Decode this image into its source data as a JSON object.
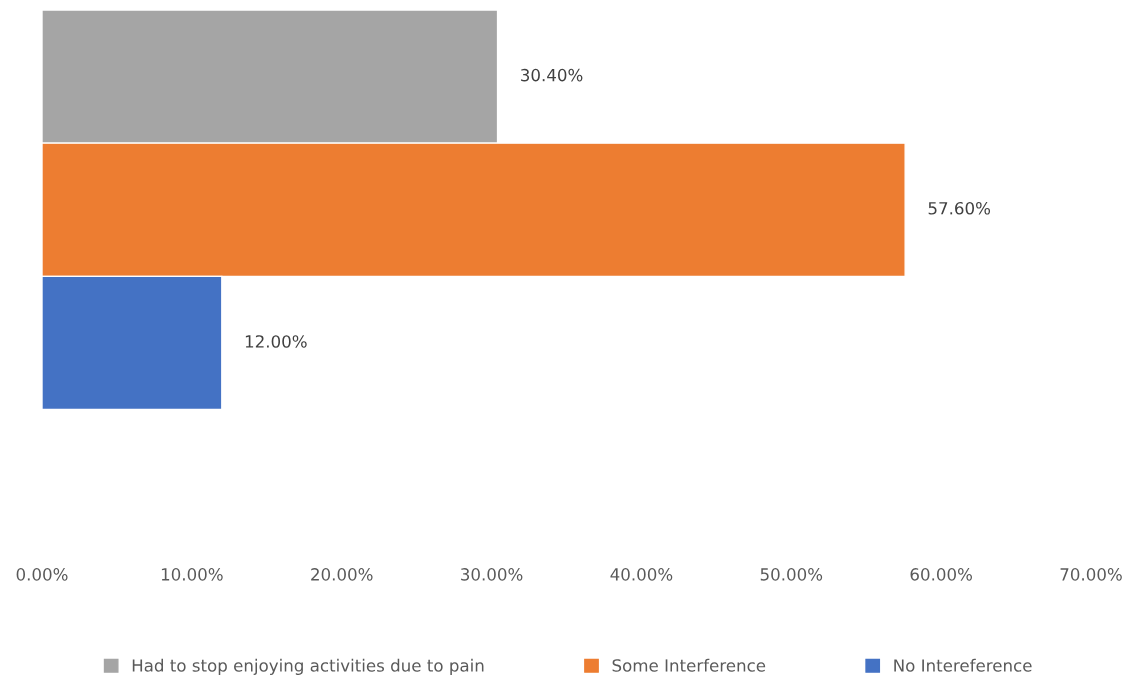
{
  "chart_data": {
    "type": "bar",
    "orientation": "horizontal",
    "categories": [
      null
    ],
    "series": [
      {
        "name": "Had to stop enjoying activities due to pain",
        "color": "#a5a5a5",
        "values": [
          30.4
        ],
        "value_labels": [
          "30.40%"
        ]
      },
      {
        "name": "Some Interference",
        "color": "#ed7d31",
        "values": [
          57.6
        ],
        "value_labels": [
          "57.60%"
        ]
      },
      {
        "name": "No Intereference",
        "color": "#4472c4",
        "values": [
          12.0
        ],
        "value_labels": [
          "12.00%"
        ]
      }
    ],
    "xlim": [
      0,
      70
    ],
    "xticks": [
      {
        "value": 0,
        "label": "0.00%"
      },
      {
        "value": 10,
        "label": "10.00%"
      },
      {
        "value": 20,
        "label": "20.00%"
      },
      {
        "value": 30,
        "label": "30.00%"
      },
      {
        "value": 40,
        "label": "40.00%"
      },
      {
        "value": 50,
        "label": "50.00%"
      },
      {
        "value": 60,
        "label": "60.00%"
      },
      {
        "value": 70,
        "label": "70.00%"
      }
    ],
    "tick_labels": "x",
    "legend": "bottom",
    "grid": false
  }
}
